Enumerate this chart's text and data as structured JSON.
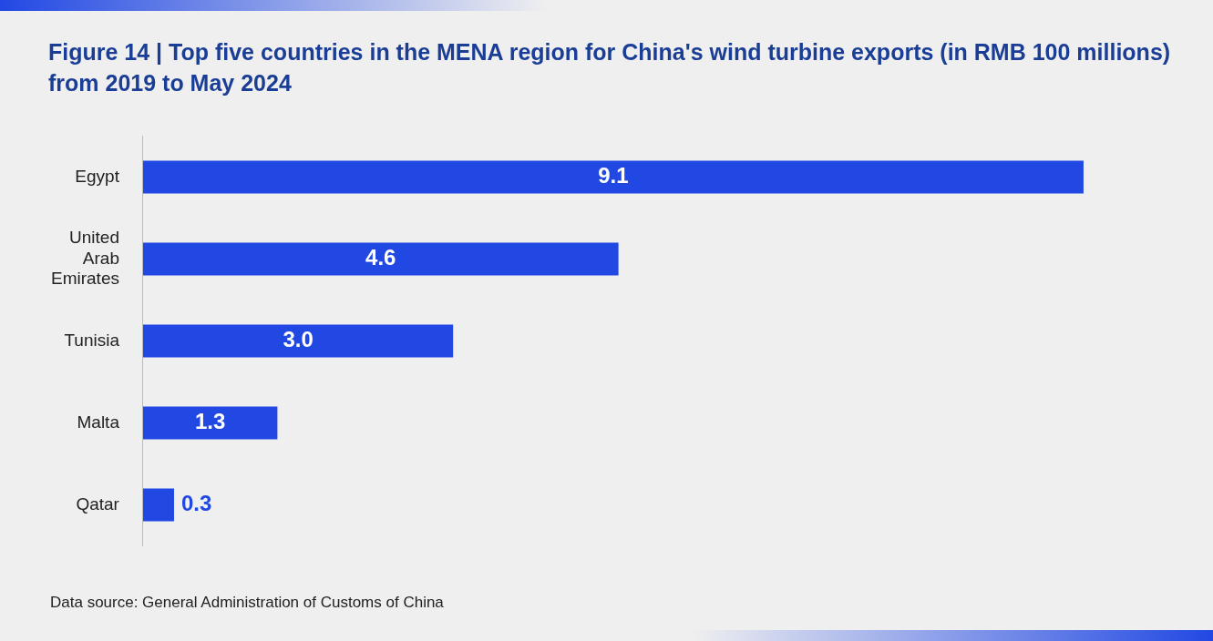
{
  "chart_data": {
    "type": "bar",
    "orientation": "horizontal",
    "title": "Figure 14 | Top five countries in the MENA region for China's wind turbine exports (in RMB 100 millions) from 2019 to May 2024",
    "categories": [
      "Egypt",
      "United Arab Emirates",
      "Tunisia",
      "Malta",
      "Qatar"
    ],
    "values": [
      9.1,
      4.6,
      3.0,
      1.3,
      0.3
    ],
    "value_labels": [
      "9.1",
      "4.6",
      "3.0",
      "1.3",
      "0.3"
    ],
    "color": "#2148e3",
    "legend": false,
    "annotations": [
      "Data source: General Administration of Customs of China"
    ]
  }
}
